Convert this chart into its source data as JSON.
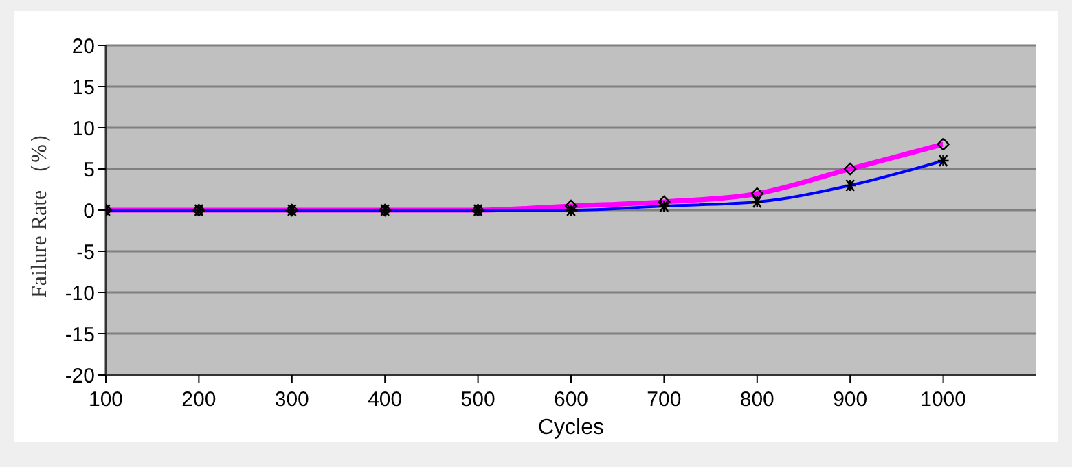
{
  "chart_data": {
    "type": "line",
    "xlabel": "Cycles",
    "ylabel": "Failure Rate （%）",
    "x": [
      100,
      200,
      300,
      400,
      500,
      600,
      700,
      800,
      900,
      1000
    ],
    "xlim": [
      100,
      1100
    ],
    "xticks": [
      100,
      200,
      300,
      400,
      500,
      600,
      700,
      800,
      900,
      1000
    ],
    "ylim": [
      -20,
      20
    ],
    "yticks": [
      -20,
      -15,
      -10,
      -5,
      0,
      5,
      10,
      15,
      20
    ],
    "grid": "y",
    "legend": false,
    "series": [
      {
        "color": "#ff00ff",
        "marker": "diamond",
        "values": [
          0,
          0,
          0,
          0,
          0,
          0.5,
          1,
          2,
          5,
          8
        ]
      },
      {
        "color": "#0000ff",
        "marker": "cross",
        "values": [
          0,
          0,
          0,
          0,
          0,
          0,
          0.5,
          1,
          3,
          6
        ]
      }
    ]
  }
}
